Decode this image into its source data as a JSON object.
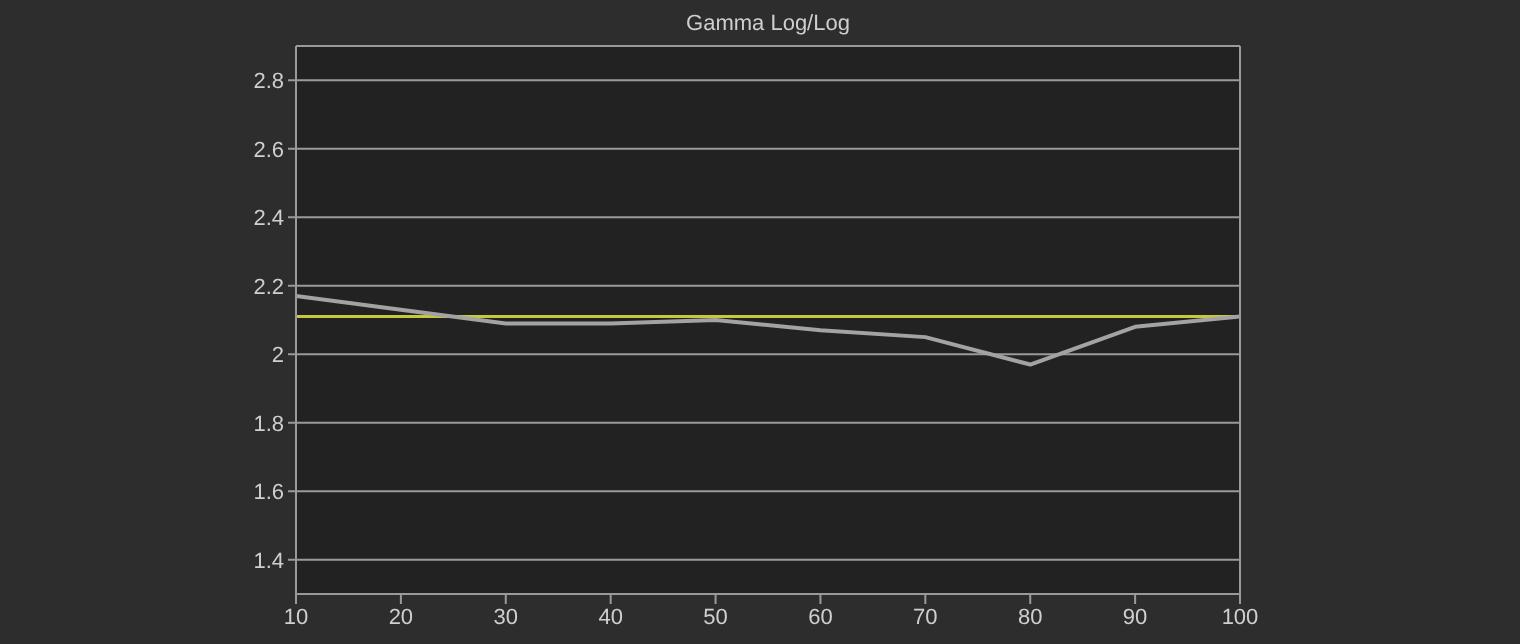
{
  "chart_data": {
    "type": "line",
    "title": "Gamma Log/Log",
    "x": [
      10,
      20,
      30,
      40,
      50,
      60,
      70,
      80,
      90,
      100
    ],
    "series": [
      {
        "color": "#a3a3a3",
        "values": [
          2.17,
          2.13,
          2.09,
          2.09,
          2.1,
          2.07,
          2.05,
          1.97,
          2.08,
          2.11
        ]
      }
    ],
    "xlim": [
      10,
      100
    ],
    "xticks": [
      10,
      20,
      30,
      40,
      50,
      60,
      70,
      80,
      90,
      100
    ],
    "ylim": [
      1.3,
      2.9
    ],
    "yticks": [
      1.4,
      1.6,
      1.8,
      2,
      2.2,
      2.4,
      2.6,
      2.8
    ],
    "ref_lines": [
      {
        "axis": "y",
        "value": 2.11,
        "color": "#c9c83a"
      }
    ],
    "grid": "y",
    "legend": false,
    "marker": "none",
    "line_style": "solid"
  }
}
